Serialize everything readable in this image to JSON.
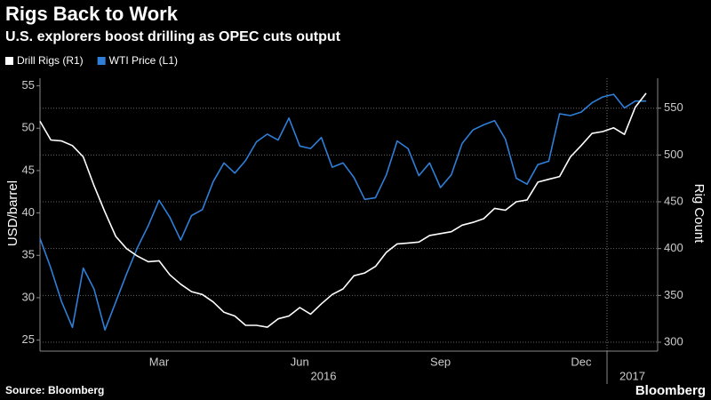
{
  "chart_data": {
    "type": "line",
    "title": "Rigs Back to Work",
    "subtitle": "U.S. explorers boost drilling as OPEC cuts output",
    "y_label": "USD/barrel",
    "y2_label": "Rig Count",
    "source": "Source: Bloomberg",
    "brand": "Bloomberg",
    "categories": [
      null,
      null,
      null,
      null,
      null,
      null,
      null,
      null,
      null,
      null,
      null,
      "Mar",
      null,
      null,
      null,
      null,
      null,
      null,
      null,
      null,
      null,
      null,
      null,
      null,
      "Jun",
      null,
      null,
      null,
      null,
      null,
      null,
      null,
      null,
      null,
      null,
      null,
      null,
      "Sep",
      null,
      null,
      null,
      null,
      null,
      null,
      null,
      null,
      null,
      null,
      null,
      null,
      "Dec",
      null,
      null,
      null,
      null,
      null,
      null
    ],
    "year_labels": [
      "2016",
      "2017"
    ],
    "series": [
      {
        "name": "Drill Rigs (R1)",
        "color": "#ffffff",
        "axis": "y2",
        "values": [
          536,
          516,
          515,
          510,
          498,
          467,
          439,
          413,
          400,
          392,
          386,
          387,
          372,
          362,
          354,
          351,
          343,
          332,
          328,
          318,
          318,
          316,
          325,
          328,
          337,
          330,
          341,
          351,
          357,
          371,
          374,
          381,
          396,
          405,
          406,
          407,
          414,
          416,
          418,
          425,
          428,
          432,
          443,
          441,
          450,
          452,
          471,
          474,
          477,
          498,
          510,
          523,
          525,
          529,
          522,
          551,
          566
        ]
      },
      {
        "name": "WTI Price (L1)",
        "color": "#2f7ed8",
        "values": [
          37.0,
          33.5,
          29.5,
          26.5,
          33.5,
          31.0,
          26.2,
          29.5,
          32.8,
          35.9,
          38.5,
          41.5,
          39.5,
          36.8,
          39.7,
          40.4,
          43.7,
          45.9,
          44.7,
          46.2,
          48.4,
          49.3,
          48.6,
          51.2,
          47.9,
          47.6,
          48.9,
          45.4,
          45.9,
          44.2,
          41.6,
          41.8,
          44.5,
          48.5,
          47.6,
          44.4,
          45.9,
          43.0,
          44.5,
          48.2,
          49.8,
          50.4,
          50.9,
          48.7,
          44.1,
          43.4,
          45.7,
          46.1,
          51.7,
          51.5,
          51.9,
          53.0,
          53.7,
          54.0,
          52.4,
          53.2,
          53.2
        ]
      }
    ],
    "ylim": [
      23.7,
      55.9
    ],
    "yticks": [
      25,
      30,
      35,
      40,
      45,
      50,
      55
    ],
    "y2lim": [
      290.5,
      582
    ],
    "y2ticks": [
      300,
      350,
      400,
      450,
      500,
      550
    ],
    "grid": true
  }
}
